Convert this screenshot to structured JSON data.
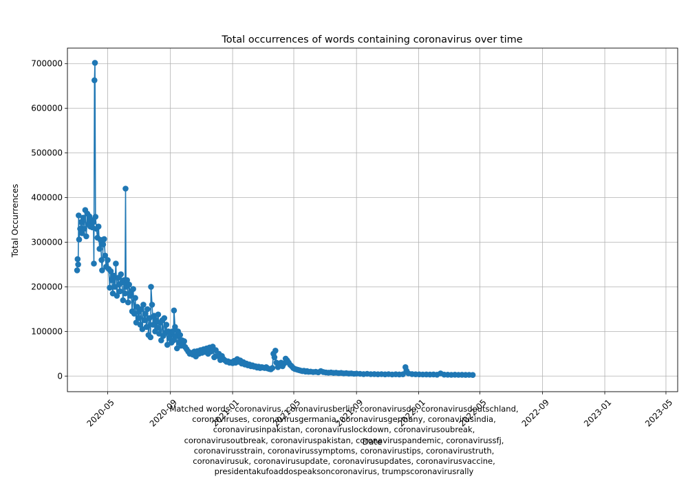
{
  "chart_data": {
    "type": "line",
    "title": "Total occurrences of words containing coronavirus over time",
    "xlabel": "Date",
    "ylabel": "Total Occurrences",
    "x_range": [
      "2020-02-12",
      "2023-05-24"
    ],
    "ylim": [
      -35000,
      735000
    ],
    "grid": true,
    "marker": "circle",
    "color": "#1f77b4",
    "x_ticks": [
      {
        "date": "2020-05-01",
        "label": "2020-05"
      },
      {
        "date": "2020-09-01",
        "label": "2020-09"
      },
      {
        "date": "2021-01-01",
        "label": "2021-01"
      },
      {
        "date": "2021-05-01",
        "label": "2021-05"
      },
      {
        "date": "2021-09-01",
        "label": "2021-09"
      },
      {
        "date": "2022-01-01",
        "label": "2022-01"
      },
      {
        "date": "2022-05-01",
        "label": "2022-05"
      },
      {
        "date": "2022-09-01",
        "label": "2022-09"
      },
      {
        "date": "2023-01-01",
        "label": "2023-01"
      },
      {
        "date": "2023-05-01",
        "label": "2023-05"
      }
    ],
    "y_ticks": [
      {
        "value": 0,
        "label": "0"
      },
      {
        "value": 100000,
        "label": "100000"
      },
      {
        "value": 200000,
        "label": "200000"
      },
      {
        "value": 300000,
        "label": "300000"
      },
      {
        "value": 400000,
        "label": "400000"
      },
      {
        "value": 500000,
        "label": "500000"
      },
      {
        "value": 600000,
        "label": "600000"
      },
      {
        "value": 700000,
        "label": "700000"
      }
    ],
    "points": [
      [
        "2020-03-02",
        237000
      ],
      [
        "2020-03-03",
        262000
      ],
      [
        "2020-03-04",
        250000
      ],
      [
        "2020-03-05",
        360000
      ],
      [
        "2020-03-06",
        306000
      ],
      [
        "2020-03-08",
        330000
      ],
      [
        "2020-03-10",
        345000
      ],
      [
        "2020-03-12",
        320000
      ],
      [
        "2020-03-14",
        355000
      ],
      [
        "2020-03-16",
        330000
      ],
      [
        "2020-03-18",
        372000
      ],
      [
        "2020-03-20",
        313000
      ],
      [
        "2020-03-22",
        364000
      ],
      [
        "2020-03-24",
        340000
      ],
      [
        "2020-03-26",
        358000
      ],
      [
        "2020-03-28",
        335000
      ],
      [
        "2020-03-30",
        350000
      ],
      [
        "2020-04-01",
        333000
      ],
      [
        "2020-04-03",
        345000
      ],
      [
        "2020-04-04",
        252000
      ],
      [
        "2020-04-05",
        663000
      ],
      [
        "2020-04-06",
        702000
      ],
      [
        "2020-04-07",
        357000
      ],
      [
        "2020-04-09",
        330000
      ],
      [
        "2020-04-11",
        310000
      ],
      [
        "2020-04-13",
        335000
      ],
      [
        "2020-04-15",
        285000
      ],
      [
        "2020-04-17",
        305000
      ],
      [
        "2020-04-19",
        260000
      ],
      [
        "2020-04-20",
        237000
      ],
      [
        "2020-04-22",
        295000
      ],
      [
        "2020-04-24",
        307000
      ],
      [
        "2020-04-26",
        270000
      ],
      [
        "2020-04-28",
        245000
      ],
      [
        "2020-05-01",
        260000
      ],
      [
        "2020-05-03",
        240000
      ],
      [
        "2020-05-05",
        198000
      ],
      [
        "2020-05-07",
        235000
      ],
      [
        "2020-05-09",
        215000
      ],
      [
        "2020-05-11",
        185000
      ],
      [
        "2020-05-13",
        225000
      ],
      [
        "2020-05-15",
        200000
      ],
      [
        "2020-05-17",
        252000
      ],
      [
        "2020-05-19",
        180000
      ],
      [
        "2020-05-21",
        220000
      ],
      [
        "2020-05-23",
        205000
      ],
      [
        "2020-05-25",
        190000
      ],
      [
        "2020-05-27",
        228000
      ],
      [
        "2020-05-29",
        210000
      ],
      [
        "2020-05-31",
        170000
      ],
      [
        "2020-06-02",
        215000
      ],
      [
        "2020-06-04",
        185000
      ],
      [
        "2020-06-05",
        420000
      ],
      [
        "2020-06-06",
        200000
      ],
      [
        "2020-06-08",
        215000
      ],
      [
        "2020-06-10",
        165000
      ],
      [
        "2020-06-12",
        205000
      ],
      [
        "2020-06-14",
        180000
      ],
      [
        "2020-06-16",
        190000
      ],
      [
        "2020-06-18",
        145000
      ],
      [
        "2020-06-20",
        195000
      ],
      [
        "2020-06-22",
        140000
      ],
      [
        "2020-06-24",
        175000
      ],
      [
        "2020-06-26",
        120000
      ],
      [
        "2020-06-28",
        155000
      ],
      [
        "2020-06-30",
        130000
      ],
      [
        "2020-07-02",
        145000
      ],
      [
        "2020-07-04",
        115000
      ],
      [
        "2020-07-06",
        150000
      ],
      [
        "2020-07-08",
        105000
      ],
      [
        "2020-07-10",
        160000
      ],
      [
        "2020-07-12",
        125000
      ],
      [
        "2020-07-14",
        140000
      ],
      [
        "2020-07-16",
        110000
      ],
      [
        "2020-07-18",
        150000
      ],
      [
        "2020-07-20",
        92000
      ],
      [
        "2020-07-22",
        130000
      ],
      [
        "2020-07-24",
        87000
      ],
      [
        "2020-07-25",
        200000
      ],
      [
        "2020-07-27",
        160000
      ],
      [
        "2020-07-29",
        115000
      ],
      [
        "2020-07-31",
        135000
      ],
      [
        "2020-08-02",
        100000
      ],
      [
        "2020-08-04",
        125000
      ],
      [
        "2020-08-06",
        108000
      ],
      [
        "2020-08-08",
        138000
      ],
      [
        "2020-08-10",
        95000
      ],
      [
        "2020-08-12",
        120000
      ],
      [
        "2020-08-14",
        80000
      ],
      [
        "2020-08-16",
        125000
      ],
      [
        "2020-08-18",
        90000
      ],
      [
        "2020-08-20",
        130000
      ],
      [
        "2020-08-22",
        97000
      ],
      [
        "2020-08-24",
        115000
      ],
      [
        "2020-08-26",
        70000
      ],
      [
        "2020-08-28",
        100000
      ],
      [
        "2020-08-30",
        85000
      ],
      [
        "2020-09-01",
        95000
      ],
      [
        "2020-09-03",
        75000
      ],
      [
        "2020-09-05",
        100000
      ],
      [
        "2020-09-07",
        80000
      ],
      [
        "2020-09-08",
        147000
      ],
      [
        "2020-09-10",
        110000
      ],
      [
        "2020-09-12",
        90000
      ],
      [
        "2020-09-14",
        62000
      ],
      [
        "2020-09-16",
        100000
      ],
      [
        "2020-09-18",
        75000
      ],
      [
        "2020-09-20",
        92000
      ],
      [
        "2020-09-22",
        68000
      ],
      [
        "2020-09-24",
        80000
      ],
      [
        "2020-09-26",
        72000
      ],
      [
        "2020-09-28",
        78000
      ],
      [
        "2020-09-30",
        65000
      ],
      [
        "2020-10-03",
        60000
      ],
      [
        "2020-10-06",
        55000
      ],
      [
        "2020-10-09",
        50000
      ],
      [
        "2020-10-12",
        52000
      ],
      [
        "2020-10-15",
        48000
      ],
      [
        "2020-10-18",
        55000
      ],
      [
        "2020-10-21",
        44000
      ],
      [
        "2020-10-24",
        56000
      ],
      [
        "2020-10-27",
        50000
      ],
      [
        "2020-10-30",
        58000
      ],
      [
        "2020-11-02",
        52000
      ],
      [
        "2020-11-05",
        60000
      ],
      [
        "2020-11-08",
        54000
      ],
      [
        "2020-11-11",
        62000
      ],
      [
        "2020-11-14",
        50000
      ],
      [
        "2020-11-17",
        64000
      ],
      [
        "2020-11-20",
        55000
      ],
      [
        "2020-11-23",
        66000
      ],
      [
        "2020-11-26",
        42000
      ],
      [
        "2020-11-29",
        58000
      ],
      [
        "2020-12-02",
        45000
      ],
      [
        "2020-12-05",
        50000
      ],
      [
        "2020-12-08",
        36000
      ],
      [
        "2020-12-11",
        45000
      ],
      [
        "2020-12-14",
        38000
      ],
      [
        "2020-12-17",
        35000
      ],
      [
        "2020-12-20",
        32000
      ],
      [
        "2020-12-23",
        33000
      ],
      [
        "2020-12-26",
        30000
      ],
      [
        "2020-12-29",
        31000
      ],
      [
        "2021-01-01",
        29000
      ],
      [
        "2021-01-04",
        34000
      ],
      [
        "2021-01-07",
        30000
      ],
      [
        "2021-01-10",
        38000
      ],
      [
        "2021-01-13",
        32000
      ],
      [
        "2021-01-16",
        35000
      ],
      [
        "2021-01-19",
        28000
      ],
      [
        "2021-01-22",
        31000
      ],
      [
        "2021-01-25",
        26000
      ],
      [
        "2021-01-28",
        28000
      ],
      [
        "2021-01-31",
        24000
      ],
      [
        "2021-02-03",
        26000
      ],
      [
        "2021-02-06",
        22000
      ],
      [
        "2021-02-09",
        24000
      ],
      [
        "2021-02-12",
        21000
      ],
      [
        "2021-02-15",
        22000
      ],
      [
        "2021-02-18",
        19000
      ],
      [
        "2021-02-21",
        21000
      ],
      [
        "2021-02-24",
        18000
      ],
      [
        "2021-02-27",
        20000
      ],
      [
        "2021-03-02",
        19000
      ],
      [
        "2021-03-05",
        18000
      ],
      [
        "2021-03-08",
        20000
      ],
      [
        "2021-03-11",
        17000
      ],
      [
        "2021-03-14",
        16000
      ],
      [
        "2021-03-17",
        15000
      ],
      [
        "2021-03-20",
        18000
      ],
      [
        "2021-03-22",
        50000
      ],
      [
        "2021-03-24",
        42000
      ],
      [
        "2021-03-26",
        57000
      ],
      [
        "2021-03-28",
        30000
      ],
      [
        "2021-03-31",
        20000
      ],
      [
        "2021-04-03",
        25000
      ],
      [
        "2021-04-06",
        30000
      ],
      [
        "2021-04-09",
        22000
      ],
      [
        "2021-04-12",
        28000
      ],
      [
        "2021-04-15",
        39000
      ],
      [
        "2021-04-18",
        35000
      ],
      [
        "2021-04-21",
        30000
      ],
      [
        "2021-04-24",
        25000
      ],
      [
        "2021-04-27",
        22000
      ],
      [
        "2021-04-30",
        18000
      ],
      [
        "2021-05-03",
        16000
      ],
      [
        "2021-05-06",
        15000
      ],
      [
        "2021-05-09",
        14000
      ],
      [
        "2021-05-12",
        13000
      ],
      [
        "2021-05-15",
        12000
      ],
      [
        "2021-05-18",
        11000
      ],
      [
        "2021-05-21",
        12000
      ],
      [
        "2021-05-24",
        10000
      ],
      [
        "2021-05-27",
        11000
      ],
      [
        "2021-05-30",
        9500
      ],
      [
        "2021-06-03",
        10000
      ],
      [
        "2021-06-08",
        9000
      ],
      [
        "2021-06-13",
        9500
      ],
      [
        "2021-06-18",
        8500
      ],
      [
        "2021-06-23",
        11000
      ],
      [
        "2021-06-28",
        9000
      ],
      [
        "2021-07-03",
        8000
      ],
      [
        "2021-07-08",
        7500
      ],
      [
        "2021-07-13",
        8000
      ],
      [
        "2021-07-18",
        7000
      ],
      [
        "2021-07-23",
        7500
      ],
      [
        "2021-07-28",
        6500
      ],
      [
        "2021-08-02",
        7000
      ],
      [
        "2021-08-07",
        6000
      ],
      [
        "2021-08-12",
        6500
      ],
      [
        "2021-08-17",
        5500
      ],
      [
        "2021-08-22",
        6000
      ],
      [
        "2021-08-27",
        5000
      ],
      [
        "2021-09-01",
        5500
      ],
      [
        "2021-09-08",
        5000
      ],
      [
        "2021-09-15",
        4500
      ],
      [
        "2021-09-22",
        5000
      ],
      [
        "2021-09-29",
        4200
      ],
      [
        "2021-10-06",
        4500
      ],
      [
        "2021-10-13",
        4000
      ],
      [
        "2021-10-20",
        4300
      ],
      [
        "2021-10-27",
        3800
      ],
      [
        "2021-11-03",
        4200
      ],
      [
        "2021-11-10",
        3500
      ],
      [
        "2021-11-17",
        4000
      ],
      [
        "2021-11-24",
        3600
      ],
      [
        "2021-12-01",
        3900
      ],
      [
        "2021-12-06",
        20000
      ],
      [
        "2021-12-08",
        12000
      ],
      [
        "2021-12-12",
        6000
      ],
      [
        "2021-12-19",
        4500
      ],
      [
        "2021-12-26",
        4000
      ],
      [
        "2022-01-02",
        3800
      ],
      [
        "2022-01-09",
        3500
      ],
      [
        "2022-01-16",
        3700
      ],
      [
        "2022-01-23",
        3300
      ],
      [
        "2022-01-30",
        3600
      ],
      [
        "2022-02-06",
        3000
      ],
      [
        "2022-02-13",
        6000
      ],
      [
        "2022-02-20",
        3200
      ],
      [
        "2022-02-27",
        3000
      ],
      [
        "2022-03-06",
        2800
      ],
      [
        "2022-03-13",
        3100
      ],
      [
        "2022-03-20",
        2700
      ],
      [
        "2022-03-27",
        2900
      ],
      [
        "2022-04-03",
        2500
      ],
      [
        "2022-04-10",
        2700
      ],
      [
        "2022-04-17",
        2400
      ]
    ]
  },
  "caption": {
    "lines": [
      "Matched words: coronavirus, coronavirusberlin, coronavirusde, coronavirusdeutschland,",
      "coronaviruses, coronavirusgermania, coronavirusgermany, coronavirusindia,",
      "coronavirusinpakistan, coronaviruslockdown, coronavirusoubreak,",
      "coronavirusoutbreak, coronaviruspakistan, coronaviruspandemic, coronavirussfj,",
      "coronavirusstrain, coronavirussymptoms, coronavirustips, coronavirustruth,",
      "coronavirusuk, coronavirusupdate, coronavirusupdates, coronavirusvaccine,",
      "presidentakufoaddospeaksoncoronavirus, trumpscoronavirusrally"
    ]
  }
}
